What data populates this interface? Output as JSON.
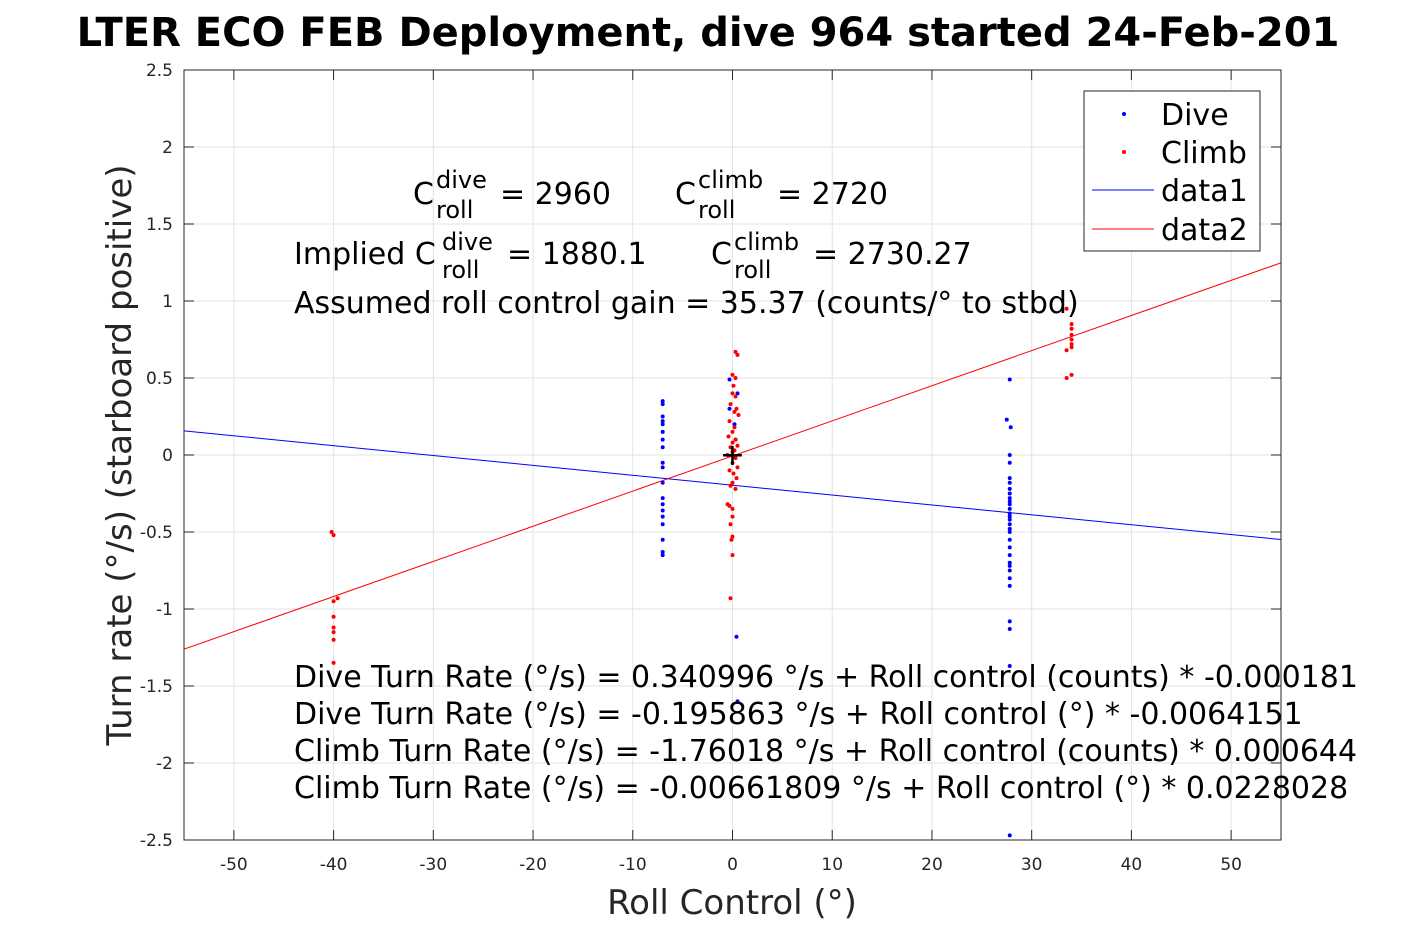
{
  "chart_data": {
    "type": "scatter",
    "title": "LTER ECO FEB Deployment, dive 964 started 24-Feb-201",
    "xlabel": "Roll Control (°)",
    "ylabel": "Turn rate (°/s) (starboard positive)",
    "xlim": [
      -55,
      55
    ],
    "ylim": [
      -2.5,
      2.5
    ],
    "xticks": [
      -50,
      -40,
      -30,
      -20,
      -10,
      0,
      10,
      20,
      30,
      40,
      50
    ],
    "yticks": [
      -2.5,
      -2,
      -1.5,
      -1,
      -0.5,
      0,
      0.5,
      1,
      1.5,
      2,
      2.5
    ],
    "xtick_labels": [
      "-50",
      "-40",
      "-30",
      "-20",
      "-10",
      "0",
      "10",
      "20",
      "30",
      "40",
      "50"
    ],
    "ytick_labels": [
      "-2.5",
      "-2",
      "-1.5",
      "-1",
      "-0.5",
      "0",
      "0.5",
      "1",
      "1.5",
      "2",
      "2.5"
    ],
    "grid": true,
    "legend_position": "top-right",
    "series": [
      {
        "name": "Dive",
        "kind": "points",
        "color": "#0000ff",
        "points": [
          [
            -7,
            0.35
          ],
          [
            -7,
            0.33
          ],
          [
            -7,
            0.25
          ],
          [
            -7,
            0.22
          ],
          [
            -7,
            0.2
          ],
          [
            -7,
            0.15
          ],
          [
            -7,
            0.1
          ],
          [
            -7,
            0.05
          ],
          [
            -7,
            -0.05
          ],
          [
            -7,
            -0.08
          ],
          [
            -7,
            -0.18
          ],
          [
            -7,
            -0.28
          ],
          [
            -7,
            -0.32
          ],
          [
            -7,
            -0.36
          ],
          [
            -7,
            -0.4
          ],
          [
            -7,
            -0.45
          ],
          [
            -7,
            -0.55
          ],
          [
            -7,
            -0.63
          ],
          [
            -7,
            -0.65
          ],
          [
            -0.3,
            0.49
          ],
          [
            -0.3,
            0.3
          ],
          [
            0.5,
            0.4
          ],
          [
            0.2,
            0.2
          ],
          [
            0.3,
            0.1
          ],
          [
            0.4,
            -1.18
          ],
          [
            0.5,
            -1.6
          ],
          [
            27.8,
            0.49
          ],
          [
            27.5,
            0.23
          ],
          [
            27.9,
            0.18
          ],
          [
            27.8,
            0.0
          ],
          [
            27.8,
            -0.05
          ],
          [
            27.8,
            -0.15
          ],
          [
            27.8,
            -0.18
          ],
          [
            27.8,
            -0.22
          ],
          [
            27.8,
            -0.25
          ],
          [
            27.8,
            -0.28
          ],
          [
            27.8,
            -0.3
          ],
          [
            27.8,
            -0.32
          ],
          [
            27.8,
            -0.35
          ],
          [
            27.8,
            -0.38
          ],
          [
            27.8,
            -0.4
          ],
          [
            27.8,
            -0.42
          ],
          [
            27.8,
            -0.45
          ],
          [
            27.8,
            -0.48
          ],
          [
            27.8,
            -0.5
          ],
          [
            27.8,
            -0.55
          ],
          [
            27.8,
            -0.6
          ],
          [
            27.8,
            -0.65
          ],
          [
            27.8,
            -0.7
          ],
          [
            27.8,
            -0.72
          ],
          [
            27.8,
            -0.75
          ],
          [
            27.8,
            -0.8
          ],
          [
            27.8,
            -0.85
          ],
          [
            27.8,
            -1.08
          ],
          [
            27.8,
            -1.13
          ],
          [
            27.8,
            -1.37
          ],
          [
            27.8,
            -2.47
          ]
        ]
      },
      {
        "name": "Climb",
        "kind": "points",
        "color": "#ff0000",
        "points": [
          [
            -40.2,
            -0.5
          ],
          [
            -40,
            -0.52
          ],
          [
            -40,
            -0.95
          ],
          [
            -39.6,
            -0.93
          ],
          [
            -40,
            -1.05
          ],
          [
            -40,
            -1.12
          ],
          [
            -40,
            -1.15
          ],
          [
            -40,
            -1.2
          ],
          [
            -40,
            -1.35
          ],
          [
            0.3,
            0.67
          ],
          [
            0.5,
            0.65
          ],
          [
            0,
            0.52
          ],
          [
            0.3,
            0.5
          ],
          [
            0.1,
            0.45
          ],
          [
            0,
            0.4
          ],
          [
            0.3,
            0.38
          ],
          [
            -0.2,
            0.33
          ],
          [
            0.4,
            0.3
          ],
          [
            0.2,
            0.28
          ],
          [
            0.6,
            0.26
          ],
          [
            -0.3,
            0.22
          ],
          [
            0.2,
            0.18
          ],
          [
            0,
            0.15
          ],
          [
            -0.4,
            0.12
          ],
          [
            0.3,
            0.1
          ],
          [
            0,
            0.08
          ],
          [
            0.5,
            0.06
          ],
          [
            -0.2,
            0.05
          ],
          [
            0.2,
            0.03
          ],
          [
            0,
            0.02
          ],
          [
            -0.5,
            0.0
          ],
          [
            0.3,
            -0.02
          ],
          [
            0,
            -0.05
          ],
          [
            0.5,
            -0.08
          ],
          [
            -0.3,
            -0.1
          ],
          [
            0.1,
            -0.12
          ],
          [
            0.4,
            -0.15
          ],
          [
            0,
            -0.18
          ],
          [
            -0.2,
            -0.2
          ],
          [
            0.3,
            -0.22
          ],
          [
            -0.5,
            -0.32
          ],
          [
            -0.3,
            -0.33
          ],
          [
            0,
            -0.35
          ],
          [
            0,
            -0.4
          ],
          [
            -0.2,
            -0.45
          ],
          [
            0,
            -0.53
          ],
          [
            -0.1,
            -0.55
          ],
          [
            0,
            -0.65
          ],
          [
            -0.2,
            -0.93
          ],
          [
            33.5,
            0.95
          ],
          [
            34,
            0.85
          ],
          [
            34,
            0.82
          ],
          [
            34,
            0.78
          ],
          [
            34,
            0.75
          ],
          [
            34,
            0.72
          ],
          [
            34,
            0.7
          ],
          [
            33.5,
            0.68
          ],
          [
            33.5,
            0.5
          ],
          [
            34,
            0.52
          ]
        ]
      },
      {
        "name": "data1",
        "kind": "line",
        "color": "#0000ff",
        "x": [
          -55,
          55
        ],
        "y": [
          0.157,
          -0.549
        ]
      },
      {
        "name": "data2",
        "kind": "line",
        "color": "#ff0000",
        "x": [
          -55,
          55
        ],
        "y": [
          -1.261,
          1.248
        ]
      }
    ],
    "marker": {
      "label": "+",
      "x": 0,
      "y": 0,
      "color": "#000000"
    },
    "annotations": {
      "c_roll": {
        "c": "C",
        "sub": "roll",
        "dive_sup": "dive",
        "climb_sup": "climb",
        "dive_value": "= 2960",
        "climb_value": "= 2720"
      },
      "implied": {
        "prefix": "Implied ",
        "dive_value": "= 1880.1",
        "climb_value": "= 2730.27"
      },
      "gain": "Assumed roll control gain = 35.37 (counts/° to stbd)",
      "equations": [
        "Dive Turn Rate (°/s) = 0.340996 °/s + Roll control (counts) * -0.000181",
        "Dive Turn Rate (°/s) = -0.195863 °/s + Roll control (°) * -0.0064151",
        "Climb Turn Rate (°/s) = -1.76018 °/s + Roll control (counts) * 0.000644",
        "Climb Turn Rate (°/s) = -0.00661809 °/s + Roll control (°) * 0.0228028"
      ]
    }
  },
  "colors": {
    "dive": "#0000ff",
    "climb": "#ff0000",
    "grid": "#e3e3e3",
    "axis": "#262626"
  }
}
